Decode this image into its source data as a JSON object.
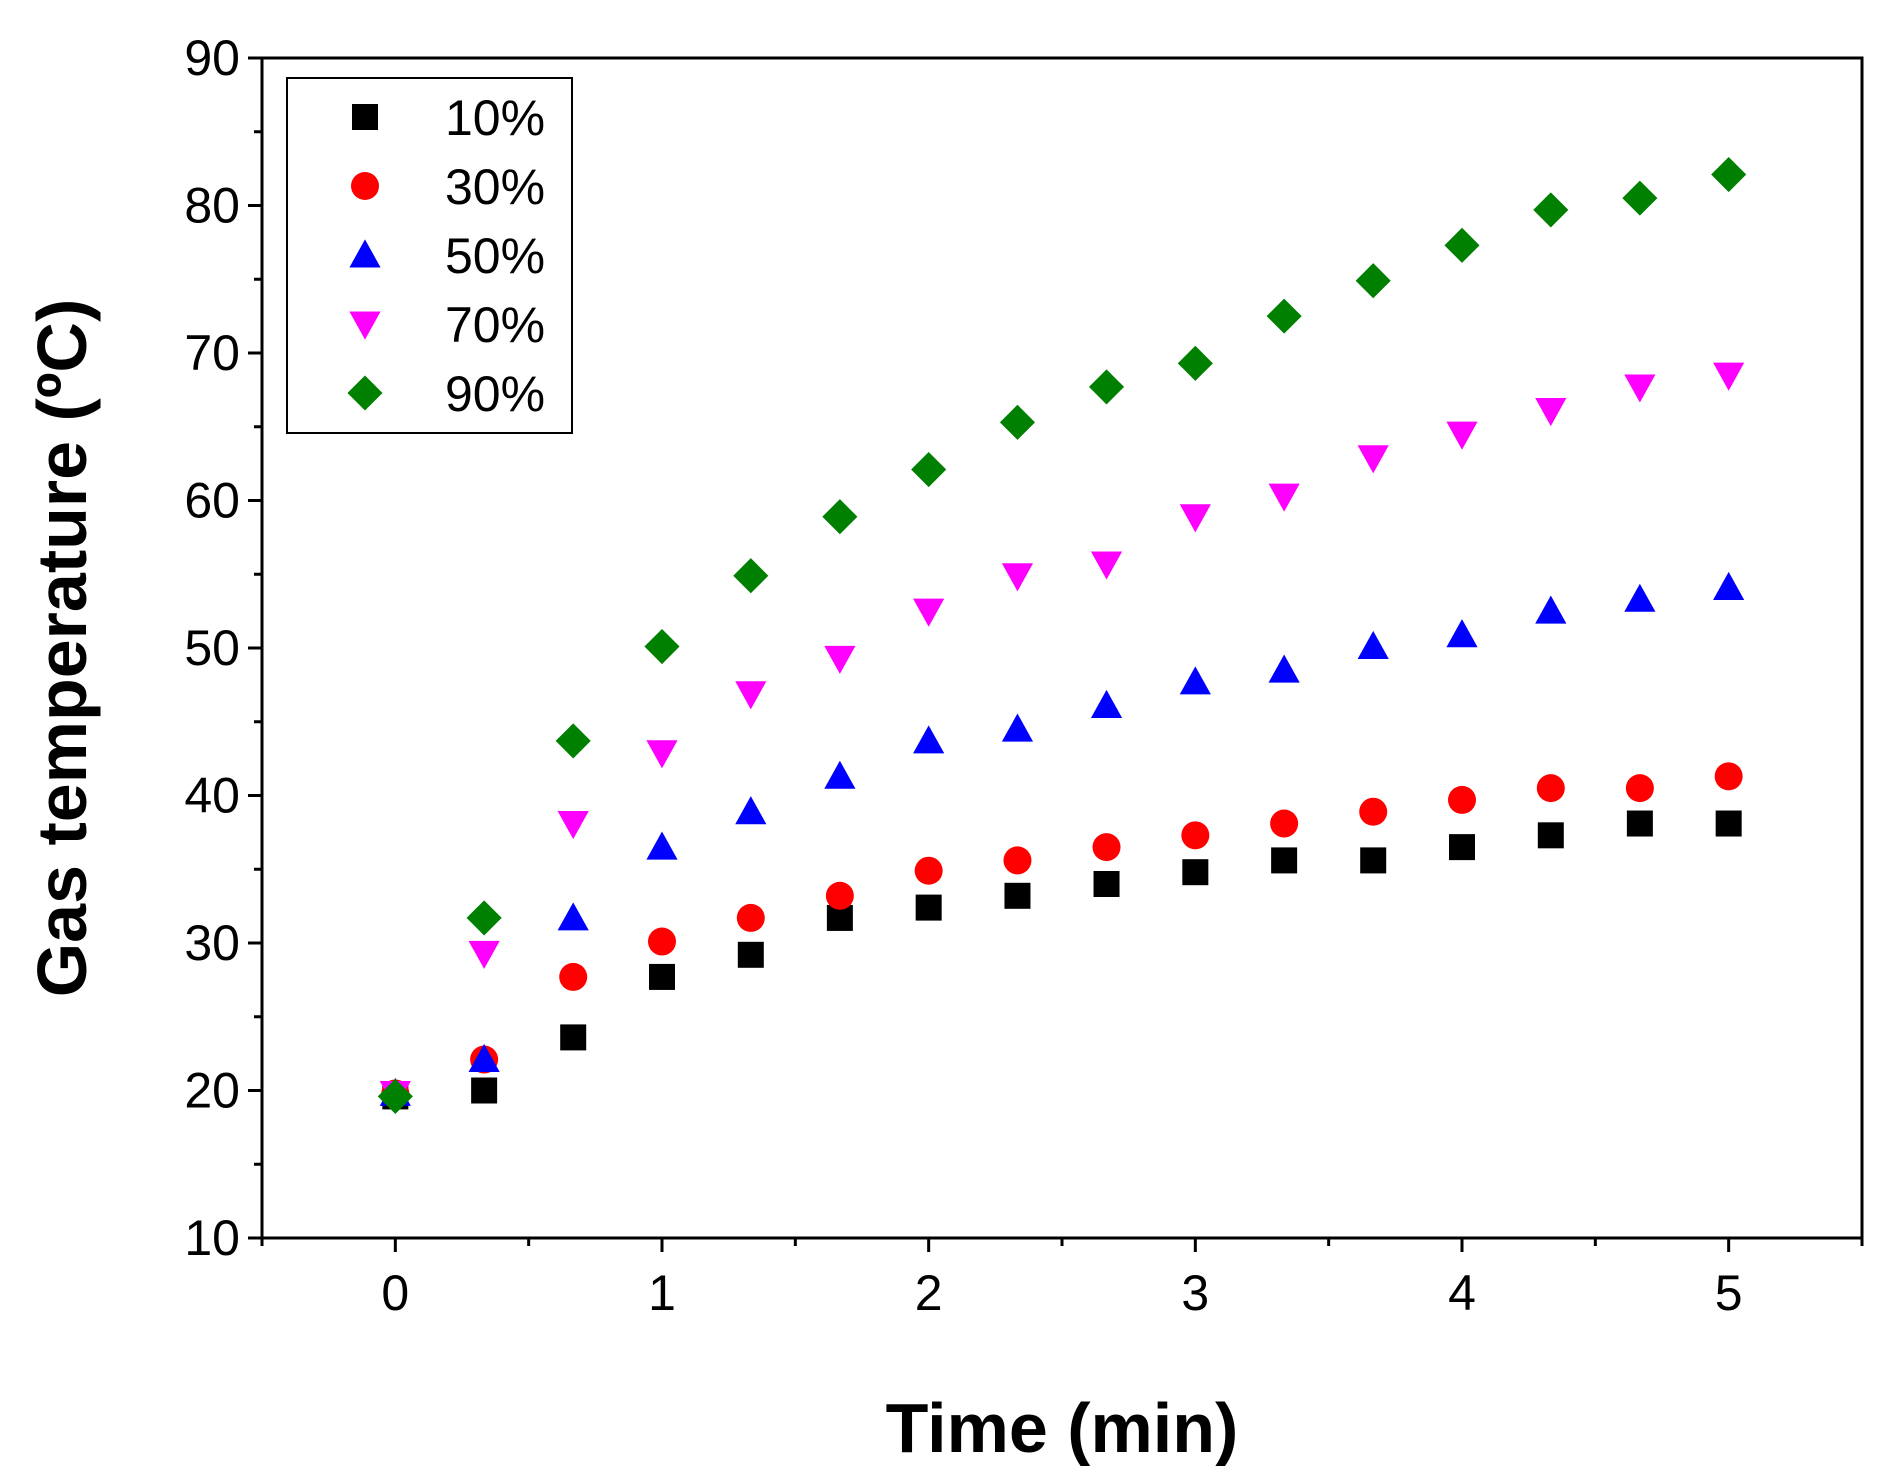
{
  "chart_data": {
    "type": "scatter",
    "title": "",
    "xlabel": "Time (min)",
    "ylabel": "Gas temperature (ºC)",
    "xlim": [
      -0.5,
      5.5
    ],
    "ylim": [
      10,
      90
    ],
    "x_ticks": [
      "0",
      "1",
      "2",
      "3",
      "4",
      "5"
    ],
    "y_ticks": [
      "10",
      "20",
      "30",
      "40",
      "50",
      "60",
      "70",
      "80",
      "90"
    ],
    "legend_position": "top-left",
    "grid": false,
    "x": [
      0,
      0.333,
      0.667,
      1,
      1.333,
      1.667,
      2,
      2.333,
      2.667,
      3,
      3.333,
      3.667,
      4,
      4.333,
      4.667,
      5
    ],
    "series": [
      {
        "name": "10%",
        "marker": "square",
        "color": "#000000",
        "values": [
          19.6,
          20.0,
          23.6,
          27.7,
          29.2,
          31.7,
          32.4,
          33.2,
          34.0,
          34.8,
          35.6,
          35.6,
          36.5,
          37.3,
          38.1,
          38.1
        ]
      },
      {
        "name": "30%",
        "marker": "circle",
        "color": "#ff0000",
        "values": [
          19.8,
          22.1,
          27.7,
          30.1,
          31.7,
          33.2,
          34.9,
          35.6,
          36.5,
          37.3,
          38.1,
          38.9,
          39.7,
          40.5,
          40.5,
          41.3
        ]
      },
      {
        "name": "50%",
        "marker": "triangle-up",
        "color": "#0000ff",
        "values": [
          19.8,
          22.1,
          31.7,
          36.5,
          38.9,
          41.3,
          43.7,
          44.5,
          46.1,
          47.7,
          48.5,
          50.1,
          50.9,
          52.5,
          53.3,
          54.1
        ]
      },
      {
        "name": "70%",
        "marker": "triangle-down",
        "color": "#ff00ff",
        "values": [
          19.8,
          29.3,
          38.1,
          42.9,
          46.9,
          49.3,
          52.5,
          54.9,
          55.7,
          58.9,
          60.3,
          62.9,
          64.5,
          66.1,
          67.7,
          68.5
        ]
      },
      {
        "name": "90%",
        "marker": "diamond",
        "color": "#008000",
        "values": [
          19.6,
          31.7,
          43.7,
          50.1,
          54.9,
          58.9,
          62.1,
          65.3,
          67.7,
          69.3,
          72.5,
          74.9,
          77.3,
          79.7,
          80.5,
          82.1
        ]
      }
    ]
  }
}
